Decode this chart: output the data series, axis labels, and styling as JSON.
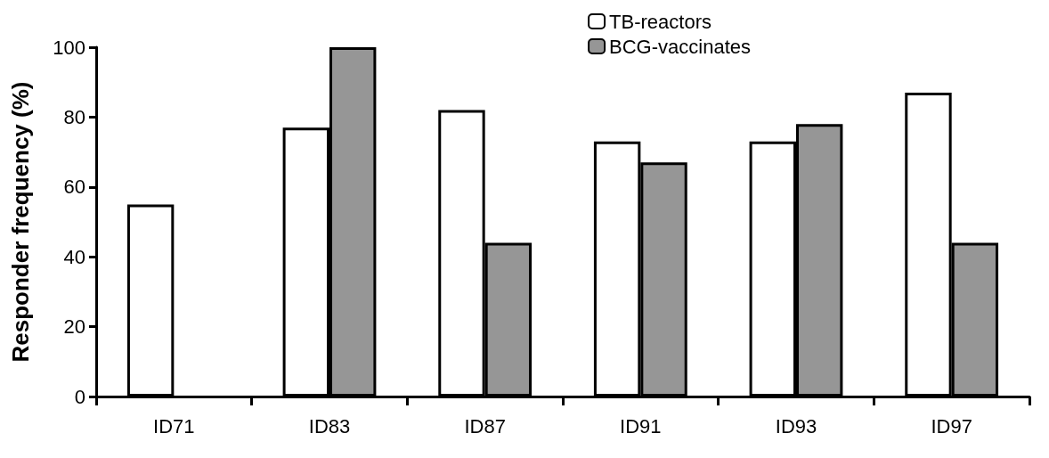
{
  "chart_data": {
    "type": "bar",
    "ylabel": "Responder frequency (%)",
    "categories": [
      "ID71",
      "ID83",
      "ID87",
      "ID91",
      "ID93",
      "ID97"
    ],
    "series": [
      {
        "name": "TB-reactors",
        "color": "#ffffff",
        "values": [
          55,
          77,
          82,
          73,
          73,
          87
        ]
      },
      {
        "name": "BCG-vaccinates",
        "color": "#969696",
        "values": [
          null,
          100,
          44,
          67,
          78,
          44
        ]
      }
    ],
    "ylim": [
      0,
      100
    ],
    "yticks": [
      0,
      20,
      40,
      60,
      80,
      100
    ],
    "grid": false,
    "legend": "top right"
  }
}
